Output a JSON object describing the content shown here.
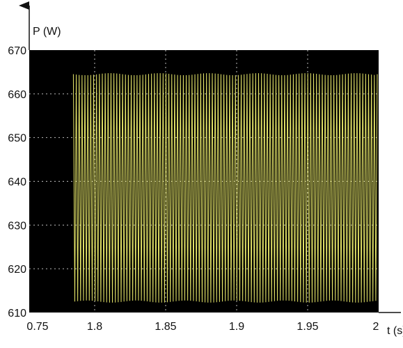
{
  "chart_data": {
    "type": "line",
    "title": "",
    "xlabel": "t (s)",
    "ylabel": "P (W)",
    "xlim": [
      0.75,
      2.0
    ],
    "ylim": [
      610,
      670
    ],
    "xticks": [
      0.75,
      1.8,
      1.85,
      1.9,
      1.95,
      2
    ],
    "xtick_labels": [
      "0.75",
      "1.8",
      "1.85",
      "1.9",
      "1.95",
      "2"
    ],
    "yticks": [
      610,
      620,
      630,
      640,
      650,
      660,
      670
    ],
    "ytick_labels": [
      "610",
      "620",
      "630",
      "640",
      "650",
      "660",
      "670"
    ],
    "grid": true,
    "background_color": "#000000",
    "line_color": "#e8e86a",
    "grid_color": "#bdbdbd",
    "series": [
      {
        "signal": "oscillation",
        "t_start": 1.785,
        "t_end": 2.0,
        "cycles": 105,
        "mean": 638.5,
        "min": 612.5,
        "max": 664.5
      }
    ]
  }
}
